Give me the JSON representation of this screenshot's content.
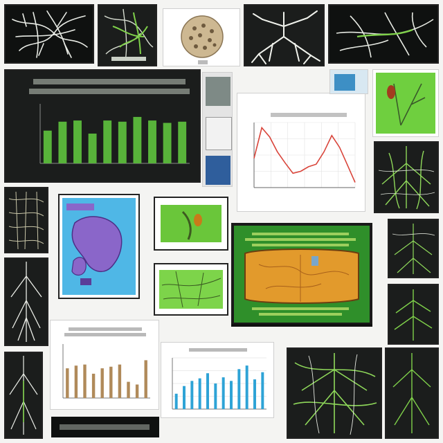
{
  "colors": {
    "root_white": "#e9ece6",
    "root_green": "#7fd14a",
    "bar_green": "#58b33a",
    "panel_dark": "#1b1d1c",
    "line_red": "#d9443a",
    "bar_blue": "#2ea3d6",
    "bar_tan": "#b08a5a",
    "organ_purple": "#8a66c9",
    "leaf_orange": "#e29a2c",
    "screen_green": "#2f8f2a"
  },
  "icons": [
    "root-network-icon",
    "seed-ball-icon",
    "leaf-icon",
    "organ-blob-icon",
    "monitor-icon"
  ],
  "bar_panel": {
    "chart_data": {
      "type": "bar",
      "values": [
        0.55,
        0.7,
        0.72,
        0.5,
        0.72,
        0.7,
        0.78,
        0.72,
        0.68,
        0.7
      ],
      "ylim": [
        0,
        1
      ],
      "grid": false
    }
  },
  "line_panel": {
    "chart_data": {
      "type": "line",
      "x": [
        0,
        1,
        2,
        3,
        4,
        5,
        6,
        7,
        8,
        9,
        10,
        11,
        12,
        13
      ],
      "values": [
        0.45,
        0.92,
        0.78,
        0.55,
        0.38,
        0.22,
        0.25,
        0.32,
        0.36,
        0.55,
        0.8,
        0.62,
        0.35,
        0.08
      ],
      "ylim": [
        0,
        1
      ],
      "grid": true
    }
  },
  "tan_panel": {
    "chart_data": {
      "type": "bar",
      "values": [
        0.55,
        0.6,
        0.62,
        0.45,
        0.55,
        0.58,
        0.62,
        0.3,
        0.25,
        0.7
      ],
      "ylim": [
        0,
        1
      ],
      "grid": false
    }
  },
  "blue_panel": {
    "chart_data": {
      "type": "bar",
      "values": [
        0.3,
        0.45,
        0.55,
        0.6,
        0.7,
        0.5,
        0.62,
        0.55,
        0.78,
        0.85,
        0.58,
        0.72
      ],
      "ylim": [
        0,
        1
      ],
      "grid": true
    }
  }
}
